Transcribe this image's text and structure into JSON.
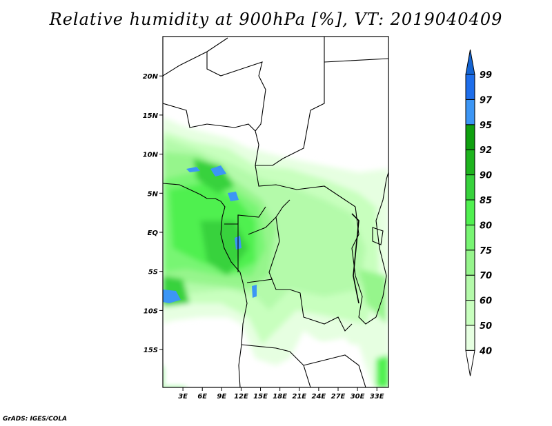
{
  "title": "Relative humidity at 900hPa [%], VT: 2019040409",
  "footer": "GrADS: IGES/COLA",
  "map": {
    "lon_ticks": [
      "3E",
      "6E",
      "9E",
      "12E",
      "15E",
      "18E",
      "21E",
      "24E",
      "27E",
      "30E",
      "33E"
    ],
    "lon_values": [
      3,
      6,
      9,
      12,
      15,
      18,
      21,
      24,
      27,
      30,
      33
    ],
    "lat_ticks": [
      "20N",
      "15N",
      "10N",
      "5N",
      "EQ",
      "5S",
      "10S",
      "15S"
    ],
    "lat_values": [
      20,
      15,
      10,
      5,
      0,
      -5,
      -10,
      -15
    ],
    "lon_range": [
      0,
      35
    ],
    "lat_range": [
      -20,
      25
    ]
  },
  "colorbar": {
    "labels": [
      "40",
      "50",
      "60",
      "70",
      "75",
      "80",
      "85",
      "90",
      "92",
      "95",
      "97",
      "99"
    ],
    "colors": [
      "#e6ffe1",
      "#c8ffbe",
      "#b4faaa",
      "#96f58c",
      "#78f573",
      "#50f050",
      "#37d23c",
      "#1eb41e",
      "#0fa00f",
      "#3c96f5",
      "#1e6eeb"
    ],
    "over_color": "#1464d2",
    "under_color": "#ffffff"
  }
}
